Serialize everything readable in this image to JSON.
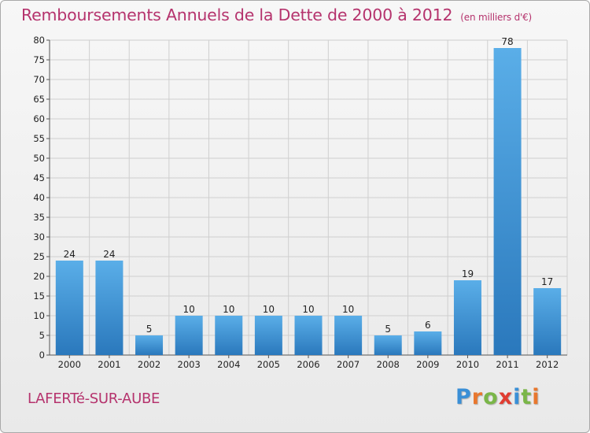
{
  "title": "Remboursements Annuels de la Dette de 2000 à 2012",
  "unit": "(en milliers d'€)",
  "commune": "LAFERTé-SUR-AUBE",
  "logo": {
    "letters": [
      "P",
      "r",
      "o",
      "x",
      "i",
      "t",
      "i"
    ],
    "colors": [
      "#3a8fd6",
      "#e8772e",
      "#7ab648",
      "#e03c31",
      "#3a8fd6",
      "#7ab648",
      "#e8772e"
    ]
  },
  "chart_data": {
    "type": "bar",
    "categories": [
      "2000",
      "2001",
      "2002",
      "2003",
      "2004",
      "2005",
      "2006",
      "2007",
      "2008",
      "2009",
      "2010",
      "2011",
      "2012"
    ],
    "values": [
      24,
      24,
      5,
      10,
      10,
      10,
      10,
      10,
      5,
      6,
      19,
      78,
      17
    ],
    "ylim": [
      0,
      80
    ],
    "yticks": [
      0,
      5,
      10,
      15,
      20,
      25,
      30,
      35,
      40,
      45,
      50,
      55,
      60,
      65,
      70,
      75,
      80
    ],
    "grid": true,
    "bar_color": "#3d8fd4"
  }
}
